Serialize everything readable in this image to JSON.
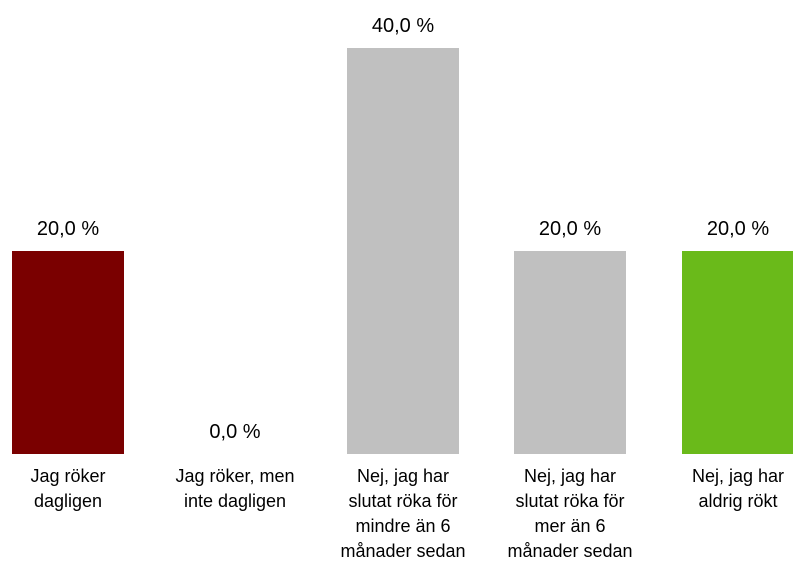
{
  "chart_data": {
    "type": "bar",
    "categories": [
      [
        "Jag röker",
        "dagligen"
      ],
      [
        "Jag röker, men",
        "inte dagligen"
      ],
      [
        "Nej, jag har",
        "slutat röka för",
        "mindre än 6",
        "månader sedan"
      ],
      [
        "Nej, jag har",
        "slutat röka för",
        "mer än 6",
        "månader sedan"
      ],
      [
        "Nej, jag har",
        "aldrig rökt"
      ]
    ],
    "values": [
      20.0,
      0.0,
      40.0,
      20.0,
      20.0
    ],
    "value_labels": [
      "20,0 %",
      "0,0 %",
      "40,0 %",
      "20,0 %",
      "20,0 %"
    ],
    "colors": [
      "#7a0000",
      "#c0c0c0",
      "#c0c0c0",
      "#c0c0c0",
      "#6aba1a"
    ],
    "ylim": [
      0,
      40
    ],
    "grid": false,
    "legend": "none"
  }
}
